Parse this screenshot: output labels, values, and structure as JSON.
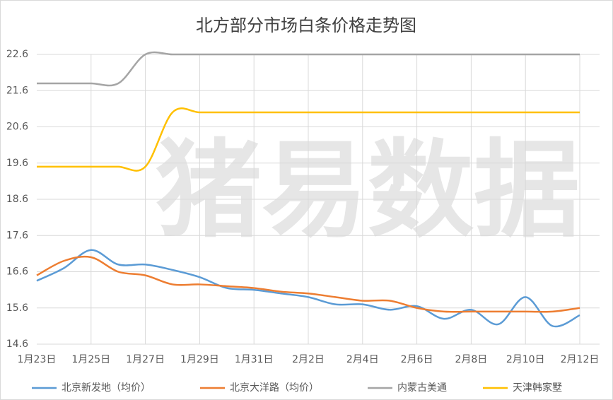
{
  "chart_data": {
    "type": "line",
    "title": "北方部分市场白条价格走势图",
    "watermark": "猪易数据",
    "categories": [
      "1月23日",
      null,
      "1月25日",
      null,
      "1月27日",
      null,
      "1月29日",
      null,
      "1月31日",
      null,
      "2月2日",
      null,
      "2月4日",
      null,
      "2月6日",
      null,
      "2月8日",
      null,
      "2月10日",
      null,
      "2月12日"
    ],
    "series": [
      {
        "name": "北京新发地（均价）",
        "color": "#5b9bd5",
        "values": [
          16.35,
          16.7,
          17.2,
          16.8,
          16.8,
          16.65,
          16.45,
          16.15,
          16.1,
          16.0,
          15.9,
          15.7,
          15.7,
          15.55,
          15.65,
          15.3,
          15.55,
          15.15,
          15.9,
          15.1,
          15.4
        ]
      },
      {
        "name": "北京大洋路（均价）",
        "color": "#ed7d31",
        "values": [
          16.5,
          16.9,
          17.0,
          16.6,
          16.5,
          16.25,
          16.25,
          16.2,
          16.15,
          16.05,
          16.0,
          15.9,
          15.8,
          15.8,
          15.6,
          15.5,
          15.5,
          15.5,
          15.5,
          15.5,
          15.6
        ]
      },
      {
        "name": "内蒙古美通",
        "color": "#a5a5a5",
        "values": [
          21.8,
          21.8,
          21.8,
          21.8,
          22.6,
          22.6,
          22.6,
          22.6,
          22.6,
          22.6,
          22.6,
          22.6,
          22.6,
          22.6,
          22.6,
          22.6,
          22.6,
          22.6,
          22.6,
          22.6,
          22.6
        ]
      },
      {
        "name": "天津韩家墅",
        "color": "#ffc000",
        "values": [
          19.5,
          19.5,
          19.5,
          19.5,
          19.5,
          21.0,
          21.0,
          21.0,
          21.0,
          21.0,
          21.0,
          21.0,
          21.0,
          21.0,
          21.0,
          21.0,
          21.0,
          21.0,
          21.0,
          21.0,
          21.0
        ]
      }
    ],
    "ylim": [
      14.6,
      22.6
    ],
    "yticks": [
      14.6,
      15.6,
      16.6,
      17.6,
      18.6,
      19.6,
      20.6,
      21.6,
      22.6
    ],
    "grid": true,
    "legend": "bottom"
  }
}
